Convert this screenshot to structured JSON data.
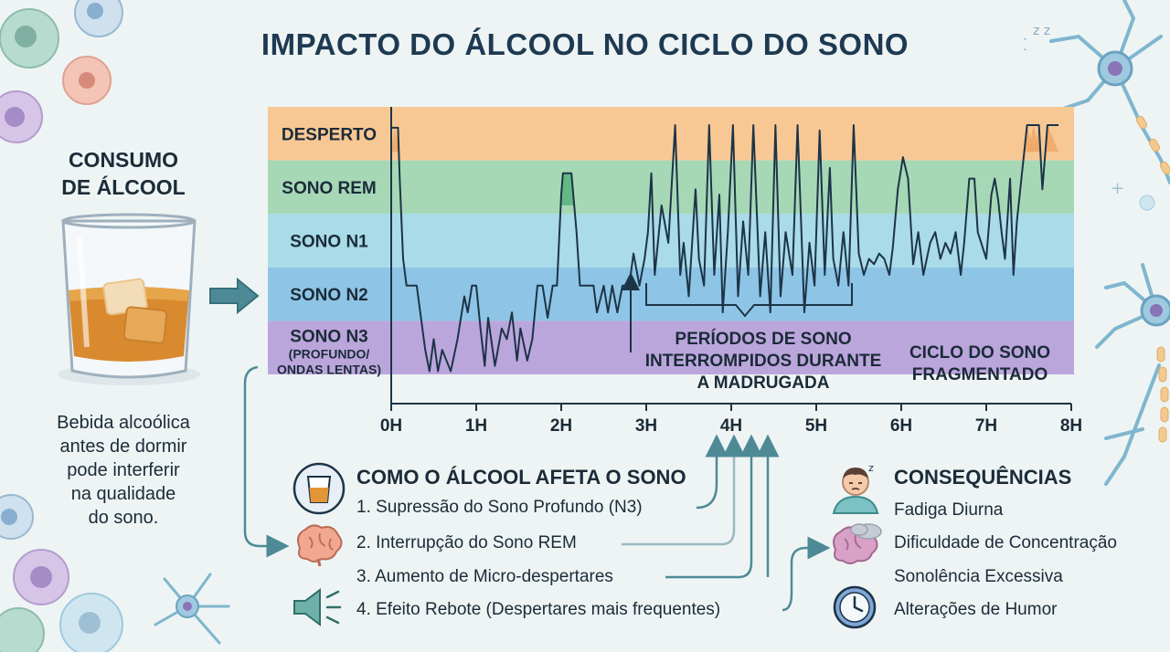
{
  "title": "IMPACTO DO ÁLCOOL NO CICLO DO SONO",
  "consumo": {
    "title_line1": "CONSUMO",
    "title_line2": "DE ÁLCOOL",
    "desc_lines": [
      "Bebida alcoólica",
      "antes de dormir",
      "pode interferir",
      "na qualidade",
      "do sono."
    ]
  },
  "chart_data": {
    "type": "line",
    "stages": [
      {
        "name": "DESPERTO",
        "color": "#f8c894"
      },
      {
        "name": "SONO REM",
        "color": "#a6d8b6"
      },
      {
        "name": "SONO N1",
        "color": "#a9dbe8"
      },
      {
        "name": "SONO N2",
        "color": "#8ec5e6"
      },
      {
        "name": "SONO N3",
        "sub1": "(PROFUNDO/",
        "sub2": "ONDAS LENTAS)",
        "color": "#bba6dc"
      }
    ],
    "x_ticks": [
      "0H",
      "1H",
      "2H",
      "3H",
      "4H",
      "5H",
      "6H",
      "7H",
      "8H"
    ],
    "x_range_hours": [
      0,
      8
    ],
    "y_levels": {
      "DESPERTO": 0,
      "SONO REM": 1,
      "SONO N1": 2,
      "SONO N2": 3,
      "SONO N3": 4
    },
    "hypnogram_hours": [
      [
        0.0,
        0.05
      ],
      [
        0.04,
        0.05
      ],
      [
        0.08,
        0.05
      ],
      [
        0.1,
        1.0
      ],
      [
        0.14,
        2.5
      ],
      [
        0.18,
        3.0
      ],
      [
        0.3,
        3.0
      ],
      [
        0.35,
        3.6
      ],
      [
        0.4,
        4.2
      ],
      [
        0.45,
        4.6
      ],
      [
        0.5,
        4.0
      ],
      [
        0.55,
        4.6
      ],
      [
        0.6,
        4.2
      ],
      [
        0.7,
        4.6
      ],
      [
        0.78,
        4.0
      ],
      [
        0.86,
        3.2
      ],
      [
        0.9,
        3.5
      ],
      [
        0.95,
        3.0
      ],
      [
        1.0,
        3.0
      ],
      [
        1.05,
        3.8
      ],
      [
        1.1,
        4.5
      ],
      [
        1.14,
        3.6
      ],
      [
        1.22,
        4.5
      ],
      [
        1.3,
        3.8
      ],
      [
        1.36,
        4.0
      ],
      [
        1.42,
        3.5
      ],
      [
        1.48,
        4.4
      ],
      [
        1.52,
        3.8
      ],
      [
        1.6,
        4.4
      ],
      [
        1.66,
        4.0
      ],
      [
        1.72,
        3.0
      ],
      [
        1.78,
        3.0
      ],
      [
        1.84,
        3.6
      ],
      [
        1.9,
        3.0
      ],
      [
        1.95,
        3.0
      ],
      [
        2.0,
        1.3
      ],
      [
        2.02,
        0.9
      ],
      [
        2.12,
        0.9
      ],
      [
        2.18,
        2.0
      ],
      [
        2.22,
        3.0
      ],
      [
        2.38,
        3.0
      ],
      [
        2.42,
        3.5
      ],
      [
        2.5,
        3.0
      ],
      [
        2.55,
        3.5
      ],
      [
        2.6,
        3.0
      ],
      [
        2.66,
        3.5
      ],
      [
        2.72,
        3.0
      ],
      [
        2.8,
        3.0
      ],
      [
        2.85,
        2.4
      ],
      [
        2.92,
        3.0
      ],
      [
        2.98,
        2.5
      ],
      [
        3.02,
        2.0
      ],
      [
        3.06,
        0.9
      ],
      [
        3.1,
        2.8
      ],
      [
        3.18,
        1.5
      ],
      [
        3.26,
        2.2
      ],
      [
        3.34,
        0.0
      ],
      [
        3.4,
        2.8
      ],
      [
        3.44,
        2.2
      ],
      [
        3.5,
        3.2
      ],
      [
        3.58,
        1.2
      ],
      [
        3.62,
        2.5
      ],
      [
        3.68,
        3.0
      ],
      [
        3.74,
        0.0
      ],
      [
        3.8,
        2.8
      ],
      [
        3.86,
        1.3
      ],
      [
        3.9,
        3.5
      ],
      [
        3.96,
        2.0
      ],
      [
        4.02,
        0.0
      ],
      [
        4.08,
        3.2
      ],
      [
        4.14,
        1.8
      ],
      [
        4.2,
        2.8
      ],
      [
        4.26,
        0.0
      ],
      [
        4.34,
        3.2
      ],
      [
        4.4,
        2.0
      ],
      [
        4.46,
        3.5
      ],
      [
        4.52,
        0.0
      ],
      [
        4.58,
        3.2
      ],
      [
        4.64,
        2.0
      ],
      [
        4.72,
        2.8
      ],
      [
        4.78,
        0.0
      ],
      [
        4.86,
        3.5
      ],
      [
        4.92,
        2.2
      ],
      [
        4.98,
        3.0
      ],
      [
        5.04,
        0.1
      ],
      [
        5.1,
        2.8
      ],
      [
        5.16,
        0.8
      ],
      [
        5.2,
        2.5
      ],
      [
        5.26,
        3.0
      ],
      [
        5.32,
        2.0
      ],
      [
        5.38,
        3.0
      ],
      [
        5.44,
        0.0
      ],
      [
        5.5,
        2.4
      ],
      [
        5.56,
        2.8
      ],
      [
        5.62,
        2.5
      ],
      [
        5.68,
        2.6
      ],
      [
        5.74,
        2.4
      ],
      [
        5.8,
        2.5
      ],
      [
        5.86,
        2.8
      ],
      [
        5.9,
        2.3
      ],
      [
        5.96,
        1.2
      ],
      [
        6.02,
        0.6
      ],
      [
        6.08,
        1.0
      ],
      [
        6.14,
        2.6
      ],
      [
        6.2,
        2.0
      ],
      [
        6.26,
        2.8
      ],
      [
        6.34,
        2.2
      ],
      [
        6.4,
        2.0
      ],
      [
        6.46,
        2.5
      ],
      [
        6.52,
        2.2
      ],
      [
        6.58,
        2.4
      ],
      [
        6.64,
        2.0
      ],
      [
        6.7,
        2.8
      ],
      [
        6.74,
        2.2
      ],
      [
        6.8,
        1.0
      ],
      [
        6.86,
        1.0
      ],
      [
        6.9,
        2.0
      ],
      [
        6.94,
        2.2
      ],
      [
        7.0,
        2.5
      ],
      [
        7.06,
        1.3
      ],
      [
        7.1,
        1.0
      ],
      [
        7.14,
        1.4
      ],
      [
        7.18,
        2.0
      ],
      [
        7.22,
        2.5
      ],
      [
        7.28,
        1.0
      ],
      [
        7.32,
        2.8
      ],
      [
        7.36,
        1.8
      ],
      [
        7.42,
        0.9
      ],
      [
        7.48,
        0.0
      ],
      [
        7.56,
        0.0
      ],
      [
        7.62,
        0.0
      ],
      [
        7.66,
        1.2
      ],
      [
        7.72,
        0.0
      ],
      [
        7.85,
        0.0
      ]
    ],
    "annotations": {
      "interruptions": [
        "PERÍODOS DE SONO",
        "INTERROMPIDOS DURANTE",
        "A MADRUGADA"
      ],
      "fragmented": [
        "CICLO DO SONO",
        "FRAGMENTADO"
      ]
    }
  },
  "como": {
    "title": "COMO O ÁLCOOL AFETA O SONO",
    "items": [
      "1. Supressão do Sono Profundo (N3)",
      "2. Interrupção do Sono REM",
      "3. Aumento de Micro-despertares",
      "4. Efeito Rebote (Despertares mais frequentes)"
    ],
    "icons": [
      "glass-icon",
      "brain-icon",
      "speaker-icon"
    ]
  },
  "consequencias": {
    "title": "CONSEQUÊNCIAS",
    "items": [
      "Fadiga Diurna",
      "Dificuldade de Concentração",
      "Sonolência Excessiva",
      "Alterações de Humor"
    ],
    "icons": [
      "tired-person-icon",
      "foggy-brain-icon",
      "clock-icon"
    ]
  },
  "colors": {
    "title": "#1e3a52",
    "line": "#1d3447",
    "accent_arrow": "#4e8a96",
    "desperto": "#f8c894",
    "rem": "#a6d8b6",
    "n1": "#a9dbe8",
    "n2": "#8ec5e6",
    "n3": "#bba6dc"
  }
}
